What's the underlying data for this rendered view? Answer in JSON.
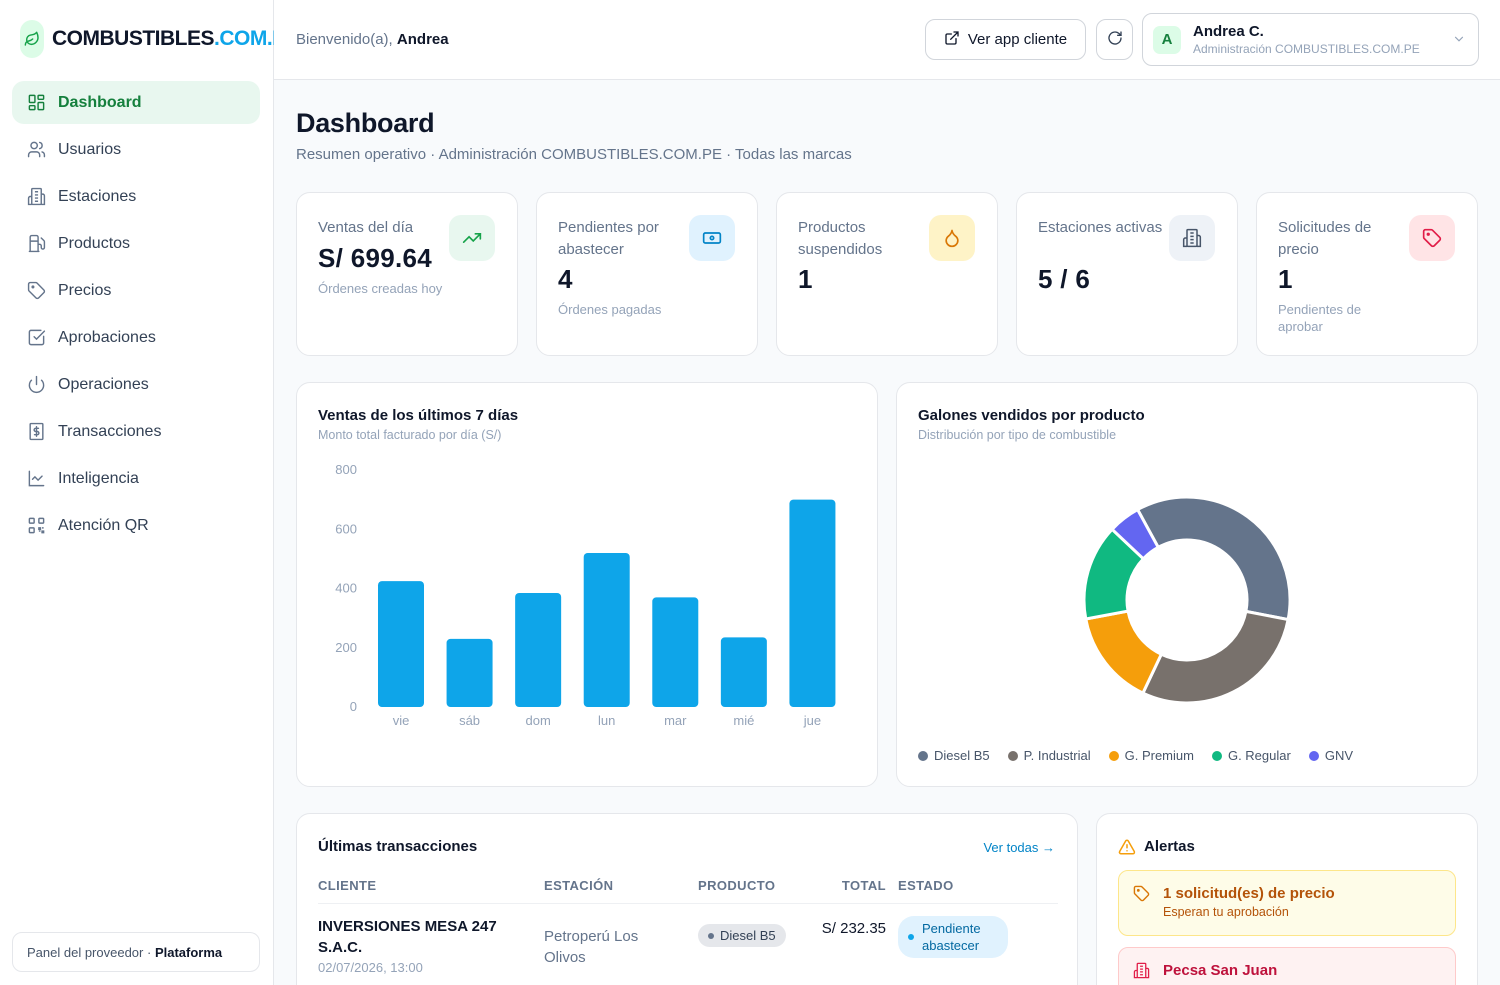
{
  "brand": {
    "name_main": "COMBUSTIBLES",
    "name_accent": ".COM.PE"
  },
  "header": {
    "welcome_prefix": "Bienvenido(a), ",
    "welcome_name": "Andrea",
    "client_app_label": "Ver app cliente",
    "user": {
      "initial": "A",
      "name": "Andrea C.",
      "role": "Administración COMBUSTIBLES.COM.PE"
    }
  },
  "sidebar": {
    "items": [
      {
        "label": "Dashboard",
        "icon": "layout-grid-icon"
      },
      {
        "label": "Usuarios",
        "icon": "users-icon"
      },
      {
        "label": "Estaciones",
        "icon": "building-icon"
      },
      {
        "label": "Productos",
        "icon": "fuel-pump-icon"
      },
      {
        "label": "Precios",
        "icon": "tag-icon"
      },
      {
        "label": "Aprobaciones",
        "icon": "check-square-icon"
      },
      {
        "label": "Operaciones",
        "icon": "power-icon"
      },
      {
        "label": "Transacciones",
        "icon": "receipt-icon"
      },
      {
        "label": "Inteligencia",
        "icon": "line-chart-icon"
      },
      {
        "label": "Atención QR",
        "icon": "qr-code-icon"
      }
    ],
    "footer_prefix": "Panel del proveedor · ",
    "footer_strong": "Plataforma"
  },
  "page": {
    "title": "Dashboard",
    "subtitle": "Resumen operativo · Administración COMBUSTIBLES.COM.PE · Todas las marcas"
  },
  "kpis": [
    {
      "label": "Ventas del día",
      "value": "S/ 699.64",
      "note": "Órdenes creadas hoy",
      "icon": "trending-up-icon",
      "accent": "#16a34a",
      "bg": "#e8f7ef"
    },
    {
      "label": "Pendientes por abastecer",
      "value": "4",
      "note": "Órdenes pagadas",
      "icon": "banknote-icon",
      "accent": "#0284c7",
      "bg": "#e0f2fe"
    },
    {
      "label": "Productos suspendidos",
      "value": "1",
      "note": "",
      "icon": "droplet-icon",
      "accent": "#d97706",
      "bg": "#fef3c7"
    },
    {
      "label": "Estaciones activas",
      "value": "5 / 6",
      "note": "",
      "icon": "building-icon",
      "accent": "#475569",
      "bg": "#eef2f7"
    },
    {
      "label": "Solicitudes de precio",
      "value": "1",
      "note": "Pendientes de aprobar",
      "icon": "tag-icon",
      "accent": "#e11d48",
      "bg": "#ffe4e6"
    }
  ],
  "sales_chart": {
    "title": "Ventas de los últimos 7 días",
    "subtitle": "Monto total facturado por día (S/)"
  },
  "gallons_chart": {
    "title": "Galones vendidos por producto",
    "subtitle": "Distribución por tipo de combustible"
  },
  "chart_data": [
    {
      "type": "bar",
      "categories": [
        "vie",
        "sáb",
        "dom",
        "lun",
        "mar",
        "mié",
        "jue"
      ],
      "values": [
        425,
        230,
        385,
        520,
        370,
        235,
        700
      ],
      "ylim": [
        0,
        800
      ],
      "yticks": [
        0,
        200,
        400,
        600,
        800
      ],
      "color": "#0ea5e9",
      "grid": false
    },
    {
      "type": "pie",
      "donut": true,
      "labels": [
        "Diesel B5",
        "P. Industrial",
        "G. Premium",
        "G. Regular",
        "GNV"
      ],
      "values": [
        36,
        29,
        15,
        15,
        5
      ],
      "colors": [
        "#64748b",
        "#78716c",
        "#f59e0b",
        "#10b981",
        "#6366f1"
      ],
      "legend": "bottom"
    }
  ],
  "transactions": {
    "title": "Últimas transacciones",
    "see_all": "Ver todas →",
    "columns": [
      "CLIENTE",
      "ESTACIÓN",
      "PRODUCTO",
      "TOTAL",
      "ESTADO"
    ],
    "rows": [
      {
        "client": "INVERSIONES MESA 247 S.A.C.",
        "date": "02/07/2026, 13:00",
        "station": "Petroperú Los Olivos",
        "product": "Diesel B5",
        "total": "S/ 232.35",
        "status": "Pendiente abastecer"
      }
    ]
  },
  "alerts": {
    "title": "Alertas",
    "items": [
      {
        "title": "1 solicitud(es) de precio",
        "subtitle": "Esperan tu aprobación",
        "tone": "warning",
        "icon": "tag-icon"
      },
      {
        "title": "Pecsa San Juan",
        "subtitle": "",
        "tone": "danger",
        "icon": "building-icon"
      }
    ]
  }
}
